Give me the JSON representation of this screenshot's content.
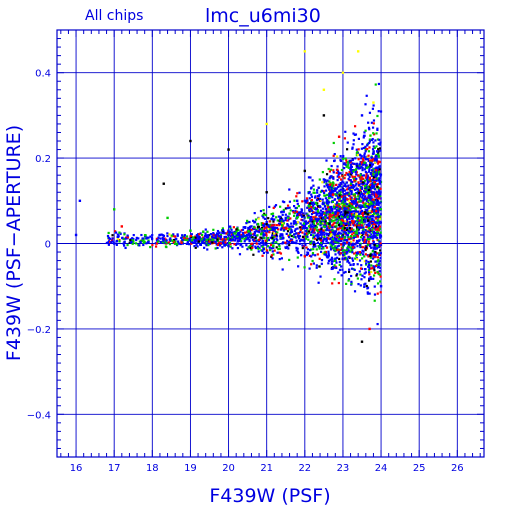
{
  "chart_data": {
    "type": "scatter",
    "title": "lmc_u6mi30",
    "subtitle": "All chips",
    "xlabel": "F439W (PSF)",
    "ylabel": "F439W (PSF−APERTURE)",
    "xlim": [
      15.5,
      26.7
    ],
    "ylim": [
      -0.5,
      0.5
    ],
    "x_ticks": [
      16,
      17,
      18,
      19,
      20,
      21,
      22,
      23,
      24,
      25,
      26
    ],
    "y_ticks": [
      -0.4,
      -0.2,
      0,
      0.2,
      0.4
    ],
    "y_tick_labels": [
      "−0.4",
      "−0.2",
      "0",
      "0.2",
      "0.4"
    ],
    "grid": true,
    "series_colors": [
      "#0000ff",
      "#00cc00",
      "#ff0000",
      "#000000",
      "#ffff00"
    ],
    "points": {
      "description": "dense scatter of magnitude residuals; spread increases from ~0.02 near mag 18 to ~0.4 near mag 23-24",
      "series": [
        {
          "color": "#0000ff",
          "x": [
            16.0,
            16.1,
            17.0,
            17.5,
            18.2,
            18.8,
            19.3,
            19.6,
            20.0,
            20.3,
            20.6,
            21.0,
            21.2,
            21.5,
            21.8,
            22.0,
            22.3,
            22.5,
            22.8,
            23.0,
            23.2,
            23.5,
            23.8,
            24.0
          ],
          "y": [
            0.02,
            0.1,
            0.0,
            0.01,
            0.02,
            0.0,
            0.01,
            0.02,
            0.03,
            0.01,
            0.04,
            0.05,
            0.03,
            0.06,
            0.1,
            0.05,
            0.08,
            0.15,
            0.02,
            0.2,
            -0.05,
            0.3,
            0.12,
            -0.1
          ]
        },
        {
          "color": "#00cc00",
          "x": [
            17.0,
            18.4,
            19.0,
            19.8,
            20.5,
            21.1,
            21.6,
            22.1,
            22.6,
            23.1,
            23.6,
            23.9
          ],
          "y": [
            0.08,
            0.06,
            0.03,
            0.02,
            0.05,
            0.04,
            0.07,
            0.12,
            0.09,
            0.18,
            0.22,
            -0.05
          ]
        },
        {
          "color": "#ff0000",
          "x": [
            17.2,
            18.1,
            19.2,
            20.1,
            20.8,
            21.4,
            22.0,
            22.4,
            22.9,
            23.3,
            23.7
          ],
          "y": [
            0.04,
            0.0,
            0.01,
            0.02,
            0.03,
            0.05,
            -0.03,
            0.1,
            0.25,
            0.15,
            -0.2
          ]
        },
        {
          "color": "#000000",
          "x": [
            18.3,
            19.0,
            20.0,
            21.0,
            22.0,
            22.5,
            23.0,
            23.5
          ],
          "y": [
            0.14,
            0.24,
            0.22,
            0.12,
            0.17,
            0.3,
            0.05,
            -0.23
          ]
        },
        {
          "color": "#ffff00",
          "x": [
            21.0,
            22.0,
            22.5,
            23.0,
            23.4,
            23.8
          ],
          "y": [
            0.28,
            0.45,
            0.36,
            0.4,
            0.45,
            0.33
          ]
        }
      ]
    }
  }
}
